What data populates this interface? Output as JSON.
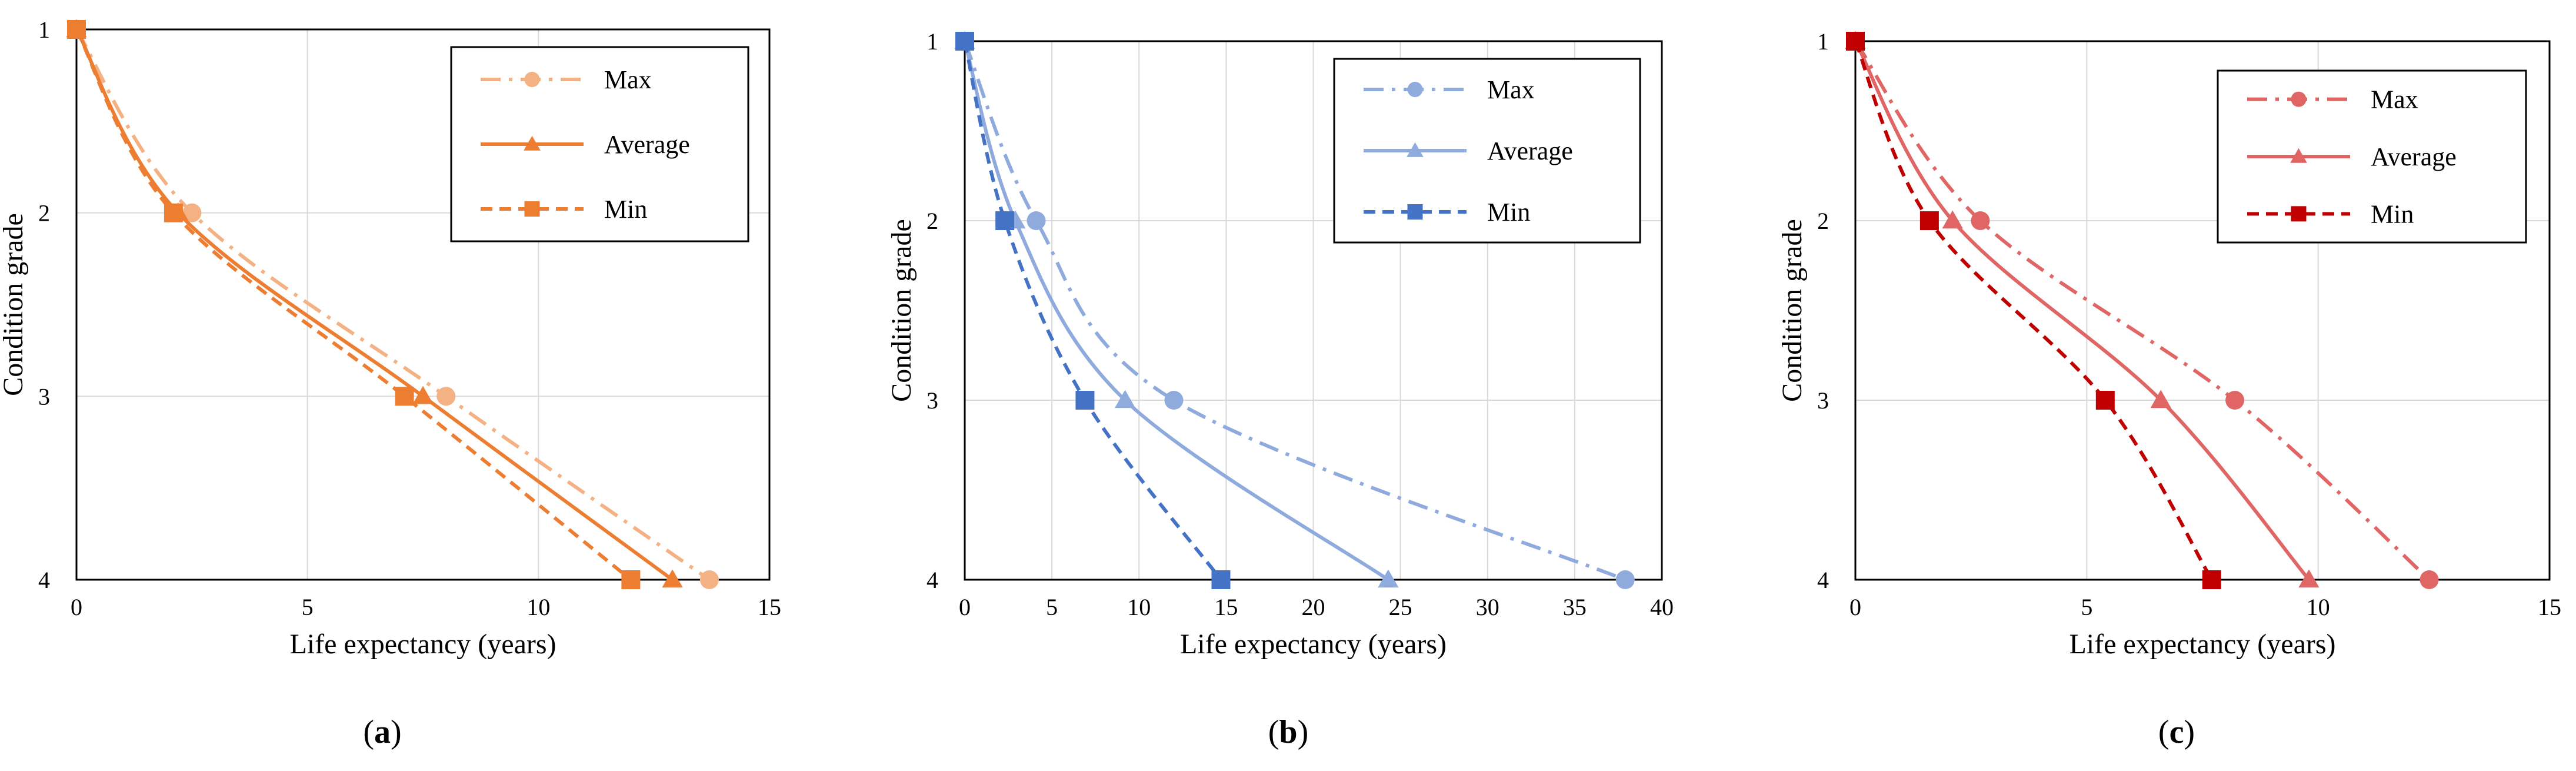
{
  "chart_data": [
    {
      "type": "line",
      "caption_letter": "a",
      "xlabel": "Life expectancy (years)",
      "ylabel": "Condition grade",
      "xlim": [
        0,
        15
      ],
      "ylim": [
        1,
        4
      ],
      "y_inverted": true,
      "x_ticks": [
        "0",
        "5",
        "10",
        "15"
      ],
      "y_ticks": [
        "1",
        "2",
        "3",
        "4"
      ],
      "grid": true,
      "legend_position": "top-right",
      "series": [
        {
          "name": "Max",
          "color": "#F4B183",
          "dash": "dash-dot",
          "marker": "circle",
          "x": [
            0,
            2.5,
            8.0,
            13.7
          ],
          "y": [
            1,
            2,
            3,
            4
          ]
        },
        {
          "name": "Average",
          "color": "#ED7D31",
          "dash": "solid",
          "marker": "triangle",
          "x": [
            0,
            2.2,
            7.5,
            12.9
          ],
          "y": [
            1,
            2,
            3,
            4
          ]
        },
        {
          "name": "Min",
          "color": "#ED7D31",
          "dash": "dashed",
          "marker": "square",
          "x": [
            0,
            2.1,
            7.1,
            12.0
          ],
          "y": [
            1,
            2,
            3,
            4
          ]
        }
      ]
    },
    {
      "type": "line",
      "caption_letter": "b",
      "xlabel": "Life expectancy (years)",
      "ylabel": "Condition grade",
      "xlim": [
        0,
        40
      ],
      "ylim": [
        1,
        4
      ],
      "y_inverted": true,
      "x_ticks": [
        "0",
        "5",
        "10",
        "15",
        "20",
        "25",
        "30",
        "35",
        "40"
      ],
      "y_ticks": [
        "1",
        "2",
        "3",
        "4"
      ],
      "grid": true,
      "legend_position": "top-right",
      "series": [
        {
          "name": "Max",
          "color": "#8FAADC",
          "dash": "dash-dot",
          "marker": "circle",
          "x": [
            0,
            4.1,
            12.0,
            37.9
          ],
          "y": [
            1,
            2,
            3,
            4
          ]
        },
        {
          "name": "Average",
          "color": "#8FAADC",
          "dash": "solid",
          "marker": "triangle",
          "x": [
            0,
            2.9,
            9.2,
            24.3
          ],
          "y": [
            1,
            2,
            3,
            4
          ]
        },
        {
          "name": "Min",
          "color": "#4472C4",
          "dash": "dashed",
          "marker": "square",
          "x": [
            0,
            2.3,
            6.9,
            14.7
          ],
          "y": [
            1,
            2,
            3,
            4
          ]
        }
      ]
    },
    {
      "type": "line",
      "caption_letter": "c",
      "xlabel": "Life expectancy (years)",
      "ylabel": "Condition grade",
      "xlim": [
        0,
        15
      ],
      "ylim": [
        1,
        4
      ],
      "y_inverted": true,
      "x_ticks": [
        "0",
        "5",
        "10",
        "15"
      ],
      "y_ticks": [
        "1",
        "2",
        "3",
        "4"
      ],
      "grid": true,
      "legend_position": "top-right",
      "series": [
        {
          "name": "Max",
          "color": "#E06666",
          "dash": "dash-dot",
          "marker": "circle",
          "x": [
            0,
            2.7,
            8.2,
            12.4
          ],
          "y": [
            1,
            2,
            3,
            4
          ]
        },
        {
          "name": "Average",
          "color": "#E06666",
          "dash": "solid",
          "marker": "triangle",
          "x": [
            0,
            2.1,
            6.6,
            9.8
          ],
          "y": [
            1,
            2,
            3,
            4
          ]
        },
        {
          "name": "Min",
          "color": "#C00000",
          "dash": "dashed",
          "marker": "square",
          "x": [
            0,
            1.6,
            5.4,
            7.7
          ],
          "y": [
            1,
            2,
            3,
            4
          ]
        }
      ]
    }
  ]
}
